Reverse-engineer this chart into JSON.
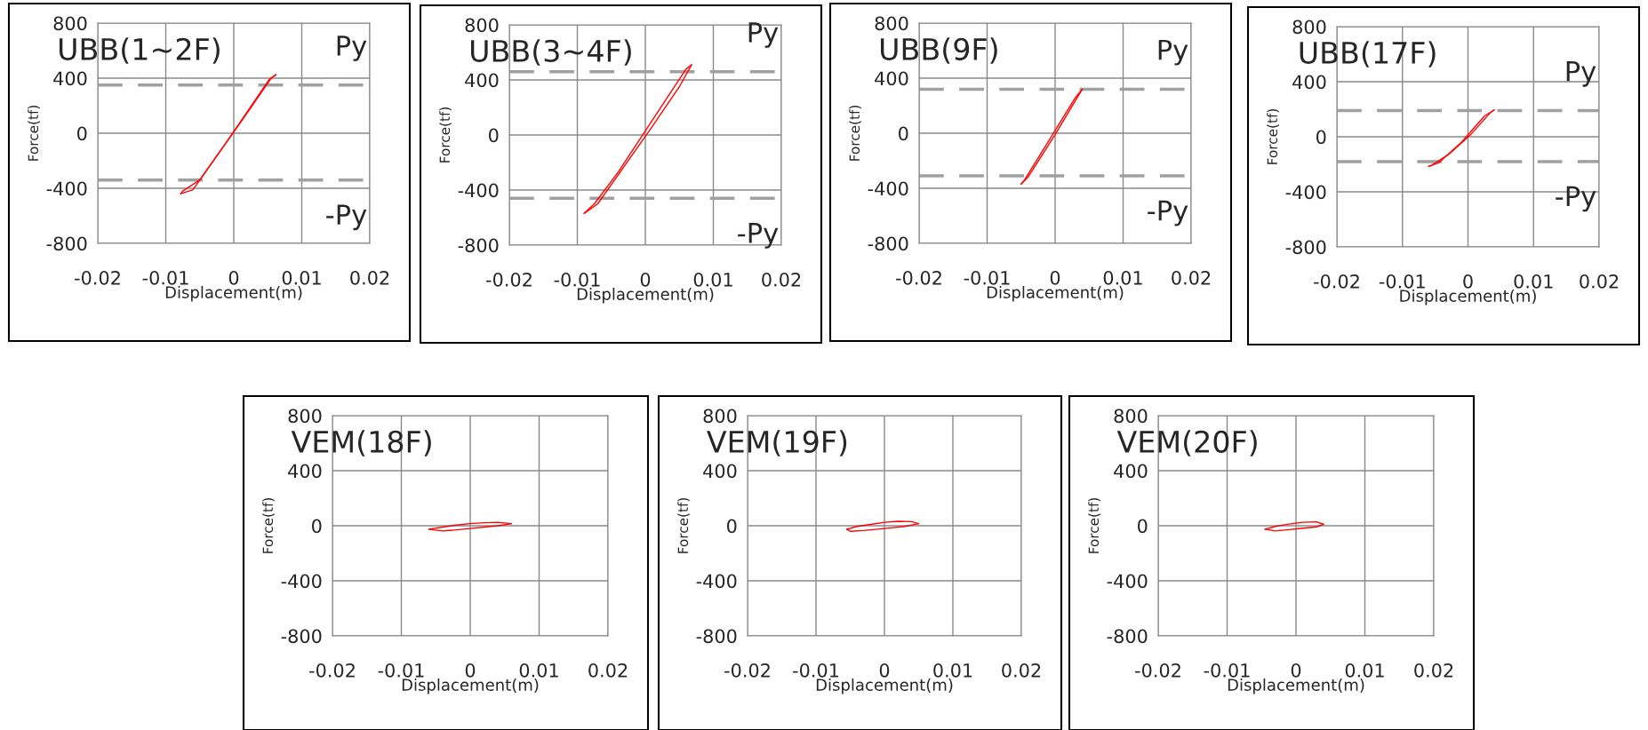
{
  "chart_data": [
    {
      "type": "line",
      "title": "UBB(1~2F)",
      "xlabel": "Displacement(m)",
      "ylabel": "Force(tf)",
      "xlim": [
        -0.02,
        0.02
      ],
      "xticks": [
        -0.02,
        -0.01,
        0,
        0.01,
        0.02
      ],
      "ylim": [
        -800,
        800
      ],
      "yticks": [
        -800,
        -400,
        0,
        400,
        800
      ],
      "grid": true,
      "series": [
        {
          "color": "#ff0000",
          "x": [
            -0.0078,
            -0.006,
            -0.002,
            0.002,
            0.0055,
            0.0062
          ],
          "values": [
            -440,
            -410,
            -130,
            150,
            400,
            425
          ]
        },
        {
          "color": "#ff0000",
          "x": [
            -0.0078,
            -0.0075,
            -0.005,
            -0.001,
            0.003,
            0.0052,
            0.0062
          ],
          "values": [
            -440,
            -420,
            -340,
            -60,
            230,
            390,
            425
          ]
        }
      ],
      "ref_lines": [
        {
          "axis": "y",
          "value": 350,
          "label": "Py",
          "color": "#a0a0a0",
          "line_style": "dashed"
        },
        {
          "axis": "y",
          "value": -340,
          "label": "-Py",
          "color": "#a0a0a0",
          "line_style": "dashed"
        }
      ]
    },
    {
      "type": "line",
      "title": "UBB(3~4F)",
      "xlabel": "Displacement(m)",
      "ylabel": "Force(tf)",
      "xlim": [
        -0.02,
        0.02
      ],
      "xticks": [
        -0.02,
        -0.01,
        0,
        0.01,
        0.02
      ],
      "ylim": [
        -800,
        800
      ],
      "yticks": [
        -800,
        -400,
        0,
        400,
        800
      ],
      "grid": true,
      "series": [
        {
          "color": "#ff0000",
          "x": [
            -0.009,
            -0.007,
            -0.003,
            0.001,
            0.005,
            0.0068
          ],
          "values": [
            -570,
            -500,
            -220,
            60,
            350,
            510
          ]
        },
        {
          "color": "#ff0000",
          "x": [
            -0.009,
            -0.0075,
            -0.004,
            0,
            0.004,
            0.006,
            0.0068
          ],
          "values": [
            -570,
            -500,
            -270,
            30,
            330,
            480,
            510
          ]
        }
      ],
      "ref_lines": [
        {
          "axis": "y",
          "value": 460,
          "label": "Py",
          "color": "#a0a0a0",
          "line_style": "dashed"
        },
        {
          "axis": "y",
          "value": -460,
          "label": "-Py",
          "color": "#a0a0a0",
          "line_style": "dashed"
        }
      ]
    },
    {
      "type": "line",
      "title": "UBB(9F)",
      "xlabel": "Displacement(m)",
      "ylabel": "Force(tf)",
      "xlim": [
        -0.02,
        0.02
      ],
      "xticks": [
        -0.02,
        -0.01,
        0,
        0.01,
        0.02
      ],
      "ylim": [
        -800,
        800
      ],
      "yticks": [
        -800,
        -400,
        0,
        400,
        800
      ],
      "grid": true,
      "series": [
        {
          "color": "#ff0000",
          "x": [
            -0.005,
            -0.004,
            0,
            0.0035,
            0.004
          ],
          "values": [
            -370,
            -320,
            -10,
            280,
            320
          ]
        },
        {
          "color": "#ff0000",
          "x": [
            -0.005,
            -0.0045,
            -0.001,
            0.003,
            0.004
          ],
          "values": [
            -370,
            -340,
            -60,
            260,
            320
          ]
        }
      ],
      "ref_lines": [
        {
          "axis": "y",
          "value": 320,
          "label": "Py",
          "color": "#a0a0a0",
          "line_style": "dashed"
        },
        {
          "axis": "y",
          "value": -310,
          "label": "-Py",
          "color": "#a0a0a0",
          "line_style": "dashed"
        }
      ]
    },
    {
      "type": "line",
      "title": "UBB(17F)",
      "xlabel": "Displacement(m)",
      "ylabel": "Force(tf)",
      "xlim": [
        -0.02,
        0.02
      ],
      "xticks": [
        -0.02,
        -0.01,
        0,
        0.01,
        0.02
      ],
      "ylim": [
        -800,
        800
      ],
      "yticks": [
        -800,
        -400,
        0,
        400,
        800
      ],
      "grid": true,
      "series": [
        {
          "color": "#ff0000",
          "x": [
            -0.006,
            -0.0045,
            -0.001,
            0.0025,
            0.004
          ],
          "values": [
            -215,
            -190,
            -40,
            150,
            195
          ]
        },
        {
          "color": "#ff0000",
          "x": [
            -0.006,
            -0.0055,
            -0.003,
            0.0005,
            0.0035,
            0.004
          ],
          "values": [
            -215,
            -205,
            -130,
            20,
            180,
            195
          ]
        }
      ],
      "ref_lines": [
        {
          "axis": "y",
          "value": 190,
          "label": "Py",
          "color": "#a0a0a0",
          "line_style": "dashed"
        },
        {
          "axis": "y",
          "value": -180,
          "label": "-Py",
          "color": "#a0a0a0",
          "line_style": "dashed"
        }
      ]
    },
    {
      "type": "line",
      "title": "VEM(18F)",
      "xlabel": "Displacement(m)",
      "ylabel": "Force(tf)",
      "xlim": [
        -0.02,
        0.02
      ],
      "xticks": [
        -0.02,
        -0.01,
        0,
        0.01,
        0.02
      ],
      "ylim": [
        -800,
        800
      ],
      "yticks": [
        -800,
        -400,
        0,
        400,
        800
      ],
      "grid": true,
      "series": [
        {
          "color": "#ff0000",
          "x": [
            -0.006,
            -0.004,
            -0.002,
            0,
            0.002,
            0.004,
            0.006
          ],
          "values": [
            -25,
            -10,
            5,
            15,
            22,
            25,
            15
          ]
        },
        {
          "color": "#ff0000",
          "x": [
            -0.006,
            -0.004,
            -0.002,
            0,
            0.002,
            0.004,
            0.006
          ],
          "values": [
            -25,
            -38,
            -30,
            -20,
            -10,
            0,
            15
          ]
        }
      ]
    },
    {
      "type": "line",
      "title": "VEM(19F)",
      "xlabel": "Displacement(m)",
      "ylabel": "Force(tf)",
      "xlim": [
        -0.02,
        0.02
      ],
      "xticks": [
        -0.02,
        -0.01,
        0,
        0.01,
        0.02
      ],
      "ylim": [
        -800,
        800
      ],
      "yticks": [
        -800,
        -400,
        0,
        400,
        800
      ],
      "grid": true,
      "series": [
        {
          "color": "#ff0000",
          "x": [
            -0.0055,
            -0.004,
            -0.002,
            0,
            0.002,
            0.004,
            0.005
          ],
          "values": [
            -25,
            -5,
            10,
            25,
            32,
            30,
            15
          ]
        },
        {
          "color": "#ff0000",
          "x": [
            -0.0055,
            -0.005,
            -0.003,
            -0.001,
            0.001,
            0.003,
            0.005
          ],
          "values": [
            -25,
            -40,
            -35,
            -25,
            -15,
            -5,
            15
          ]
        }
      ]
    },
    {
      "type": "line",
      "title": "VEM(20F)",
      "xlabel": "Displacement(m)",
      "ylabel": "Force(tf)",
      "xlim": [
        -0.02,
        0.02
      ],
      "xticks": [
        -0.02,
        -0.01,
        0,
        0.01,
        0.02
      ],
      "ylim": [
        -800,
        800
      ],
      "yticks": [
        -800,
        -400,
        0,
        400,
        800
      ],
      "grid": true,
      "series": [
        {
          "color": "#ff0000",
          "x": [
            -0.0045,
            -0.003,
            -0.001,
            0.001,
            0.003,
            0.004
          ],
          "values": [
            -25,
            -5,
            12,
            25,
            28,
            10
          ]
        },
        {
          "color": "#ff0000",
          "x": [
            -0.0045,
            -0.003,
            -0.001,
            0.001,
            0.003,
            0.004
          ],
          "values": [
            -25,
            -38,
            -28,
            -18,
            -8,
            10
          ]
        }
      ]
    }
  ]
}
